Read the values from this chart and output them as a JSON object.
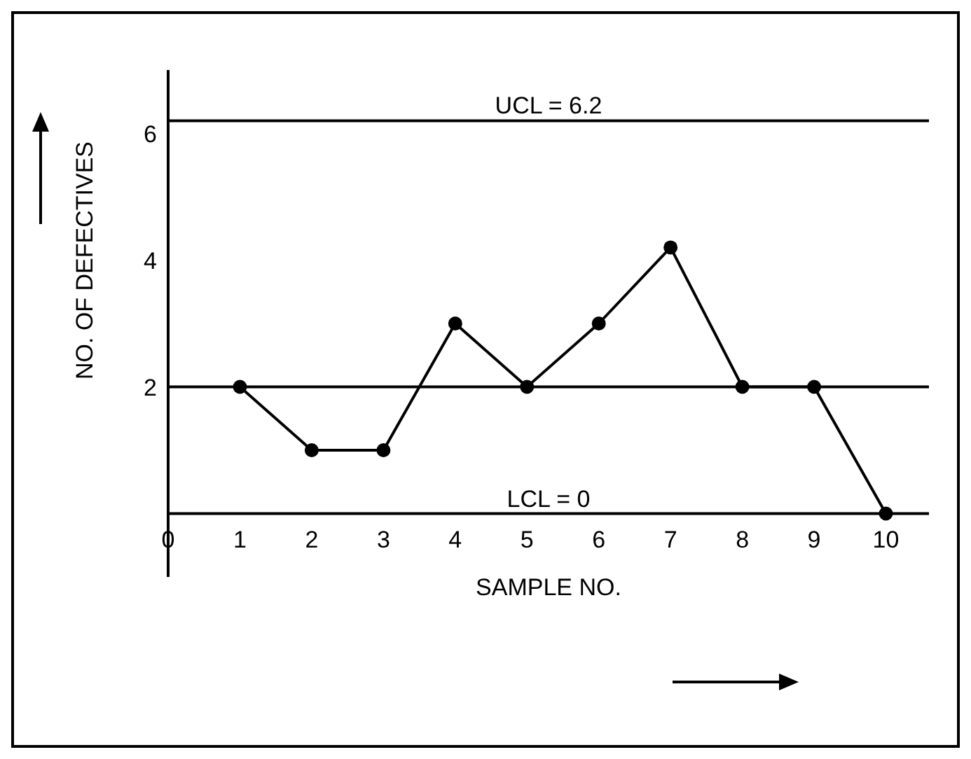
{
  "chart_data": {
    "type": "line",
    "xlabel": "SAMPLE NO.",
    "ylabel": "NO. OF DEFECTIVES",
    "x": [
      1,
      2,
      3,
      4,
      5,
      6,
      7,
      8,
      9,
      10
    ],
    "series": [
      {
        "color": "#000000",
        "values": [
          2,
          1,
          1,
          3,
          2,
          3,
          4.2,
          2,
          2,
          0
        ]
      }
    ],
    "xlim": [
      0,
      10.6
    ],
    "xticks": [
      0,
      1,
      2,
      3,
      4,
      5,
      6,
      7,
      8,
      9,
      10
    ],
    "ylim": [
      -1,
      7
    ],
    "yticks": [
      2,
      4,
      6
    ],
    "ref_lines": [
      {
        "axis": "y",
        "value": 6.2,
        "label": "UCL = 6.2"
      },
      {
        "axis": "y",
        "value": 2,
        "label": null
      },
      {
        "axis": "y",
        "value": 0,
        "label": "LCL = 0"
      }
    ],
    "marker": "circle",
    "line_style": "solid",
    "grid": false,
    "legend": false
  }
}
